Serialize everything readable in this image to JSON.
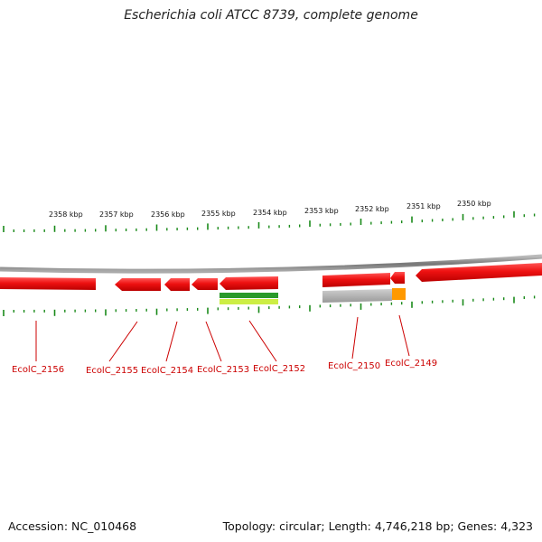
{
  "title": "Escherichia coli ATCC 8739, complete genome",
  "accession": "Accession: NC_010468",
  "summary": "Topology: circular; Length: 4,746,218 bp; Genes: 4,323",
  "kbp_labels": [
    "2358 kbp",
    "2357 kbp",
    "2356 kbp",
    "2355 kbp",
    "2354 kbp",
    "2353 kbp",
    "2352 kbp",
    "2351 kbp",
    "2350 kbp"
  ],
  "genes": [
    "EcolC_2156",
    "EcolC_2155",
    "EcolC_2154",
    "EcolC_2153",
    "EcolC_2152",
    "EcolC_2150",
    "EcolC_2149"
  ],
  "colors": {
    "gene": "#ee1111",
    "tick": "#1a8a1a",
    "backbone": "#888888",
    "label": "#cc0000",
    "feature_green": "#2a9a2a",
    "feature_lime": "#ccee44",
    "feature_grey": "#aaaaaa",
    "feature_orange": "#ff9900"
  }
}
